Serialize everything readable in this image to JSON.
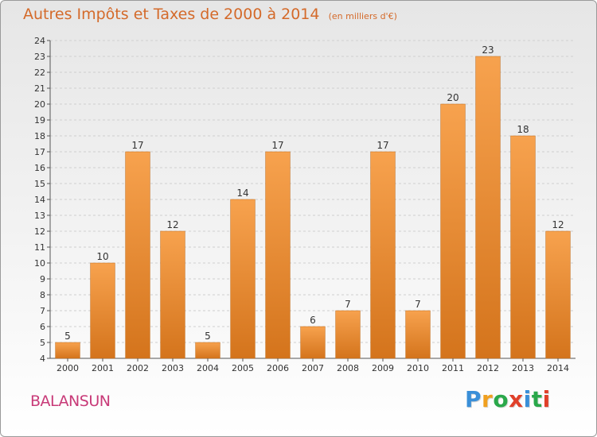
{
  "header": {
    "title": "Autres Impôts et Taxes de 2000 à 2014",
    "subtitle": "(en milliers d'€)"
  },
  "footer": {
    "commune": "BALANSUN",
    "logo_text": "Proxiti",
    "logo_letters": [
      {
        "ch": "P",
        "color": "#3a8fd8"
      },
      {
        "ch": "r",
        "color": "#f0a020"
      },
      {
        "ch": "o",
        "color": "#2aa84a"
      },
      {
        "ch": "x",
        "color": "#e0402a"
      },
      {
        "ch": "i",
        "color": "#3a8fd8"
      },
      {
        "ch": "t",
        "color": "#2aa84a"
      },
      {
        "ch": "i",
        "color": "#e0402a"
      }
    ]
  },
  "colors": {
    "title": "#d46a2a",
    "commune": "#c83a78",
    "bar_light": "#f7a24e",
    "bar_dark": "#d4741c"
  },
  "chart_data": {
    "type": "bar",
    "title": "Autres Impôts et Taxes de 2000 à 2014",
    "subtitle": "(en milliers d'€)",
    "categories": [
      "2000",
      "2001",
      "2002",
      "2003",
      "2004",
      "2005",
      "2006",
      "2007",
      "2008",
      "2009",
      "2010",
      "2011",
      "2012",
      "2013",
      "2014"
    ],
    "values": [
      5,
      10,
      17,
      12,
      5,
      14,
      17,
      6,
      7,
      17,
      7,
      20,
      23,
      18,
      12
    ],
    "ylim": [
      4,
      24
    ],
    "yticks": [
      4,
      5,
      6,
      7,
      8,
      9,
      10,
      11,
      12,
      13,
      14,
      15,
      16,
      17,
      18,
      19,
      20,
      21,
      22,
      23,
      24
    ],
    "grid": true,
    "legend": "none"
  }
}
